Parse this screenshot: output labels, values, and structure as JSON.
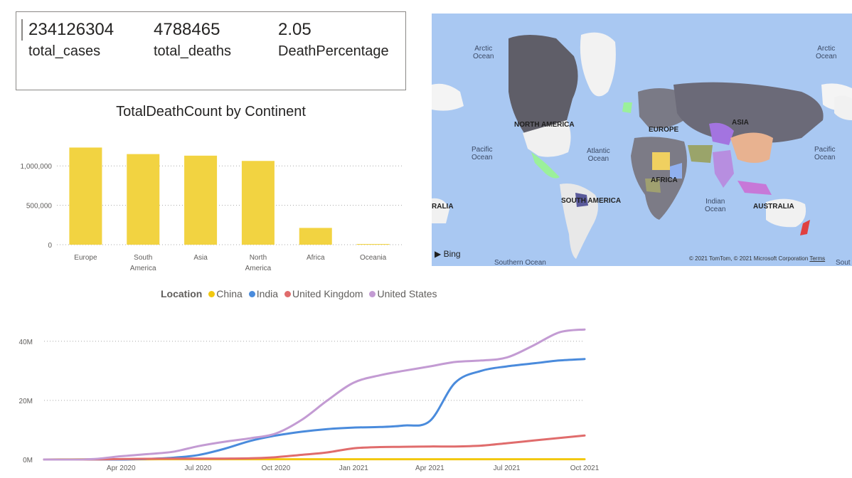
{
  "kpis": [
    {
      "value": "234126304",
      "label": "total_cases"
    },
    {
      "value": "4788465",
      "label": "total_deaths"
    },
    {
      "value": "2.05",
      "label": "DeathPercentage"
    }
  ],
  "map": {
    "labels": {
      "arctic_left": [
        "Arctic",
        "Ocean"
      ],
      "arctic_right": [
        "Arctic",
        "Ocean"
      ],
      "pacific_left": [
        "Pacific",
        "Ocean"
      ],
      "pacific_right": [
        "Pacific",
        "Ocean"
      ],
      "atlantic": [
        "Atlantic",
        "Ocean"
      ],
      "indian": [
        "Indian",
        "Ocean"
      ],
      "north_america": "NORTH AMERICA",
      "south_america": "SOUTH AMERICA",
      "europe": "EUROPE",
      "asia": "ASIA",
      "africa": "AFRICA",
      "australia": "AUSTRALIA",
      "australia_cut": "RALIA",
      "southern_ocean": "Southern Ocean",
      "southern_cut": "Sout"
    },
    "bing": "Bing",
    "attribution": "© 2021 TomTom, © 2021 Microsoft Corporation",
    "terms": "Terms"
  },
  "legend": {
    "title": "Location",
    "items": [
      {
        "name": "China",
        "color": "#F2C80F"
      },
      {
        "name": "India",
        "color": "#4A8BDC"
      },
      {
        "name": "United Kingdom",
        "color": "#E06C6C"
      },
      {
        "name": "United States",
        "color": "#C39BD3"
      }
    ]
  },
  "chart_data": [
    {
      "type": "bar",
      "title": "TotalDeathCount by Continent",
      "categories": [
        [
          "Europe"
        ],
        [
          "South",
          "America"
        ],
        [
          "Asia"
        ],
        [
          "North",
          "America"
        ],
        [
          "Africa"
        ],
        [
          "Oceania"
        ]
      ],
      "values": [
        1233000,
        1150000,
        1130000,
        1063000,
        213000,
        3500
      ],
      "ylim": [
        0,
        1300000
      ],
      "yticks": [
        0,
        500000,
        1000000
      ],
      "ytick_labels": [
        "0",
        "500,000",
        "1,000,000"
      ],
      "color": "#F2D341",
      "grid": true
    },
    {
      "type": "line",
      "x": [
        "2020-01-01",
        "2020-02-01",
        "2020-03-01",
        "2020-04-01",
        "2020-05-01",
        "2020-06-01",
        "2020-07-01",
        "2020-08-01",
        "2020-09-01",
        "2020-10-01",
        "2020-11-01",
        "2020-12-01",
        "2021-01-01",
        "2021-02-01",
        "2021-03-01",
        "2021-04-01",
        "2021-05-01",
        "2021-06-01",
        "2021-07-01",
        "2021-08-01",
        "2021-09-01",
        "2021-10-01"
      ],
      "xticks": [
        "2020-04-01",
        "2020-07-01",
        "2020-10-01",
        "2021-01-01",
        "2021-04-01",
        "2021-07-01",
        "2021-10-01"
      ],
      "xtick_labels": [
        "Apr 2020",
        "Jul 2020",
        "Oct 2020",
        "Jan 2021",
        "Apr 2021",
        "Jul 2021",
        "Oct 2021"
      ],
      "yticks": [
        0,
        20000000,
        40000000
      ],
      "ytick_labels": [
        "0M",
        "20M",
        "40M"
      ],
      "ylim": [
        0,
        45000000
      ],
      "series": [
        {
          "name": "China",
          "color": "#F2C80F",
          "values": [
            0,
            0.08,
            0.08,
            0.08,
            0.08,
            0.09,
            0.09,
            0.09,
            0.09,
            0.09,
            0.09,
            0.09,
            0.1,
            0.1,
            0.1,
            0.1,
            0.1,
            0.1,
            0.1,
            0.1,
            0.1,
            0.1
          ]
        },
        {
          "name": "India",
          "color": "#4A8BDC",
          "values": [
            0,
            0,
            0,
            0.01,
            0.2,
            0.6,
            1.5,
            3.6,
            6.3,
            8.1,
            9.4,
            10.3,
            10.8,
            11.0,
            11.5,
            13.0,
            26.0,
            30.0,
            31.5,
            32.5,
            33.5,
            34.0
          ]
        },
        {
          "name": "United Kingdom",
          "color": "#E06C6C",
          "values": [
            0,
            0,
            0.03,
            0.15,
            0.25,
            0.29,
            0.3,
            0.32,
            0.4,
            0.8,
            1.6,
            2.4,
            3.8,
            4.2,
            4.3,
            4.4,
            4.4,
            4.7,
            5.5,
            6.4,
            7.3,
            8.1
          ]
        },
        {
          "name": "United States",
          "color": "#C39BD3",
          "values": [
            0,
            0,
            0.2,
            1.1,
            1.8,
            2.6,
            4.5,
            6.0,
            7.2,
            8.8,
            13.5,
            20.0,
            26.0,
            28.5,
            30.0,
            31.5,
            33.0,
            33.5,
            34.5,
            38.5,
            43.0,
            44.0
          ]
        }
      ]
    }
  ]
}
